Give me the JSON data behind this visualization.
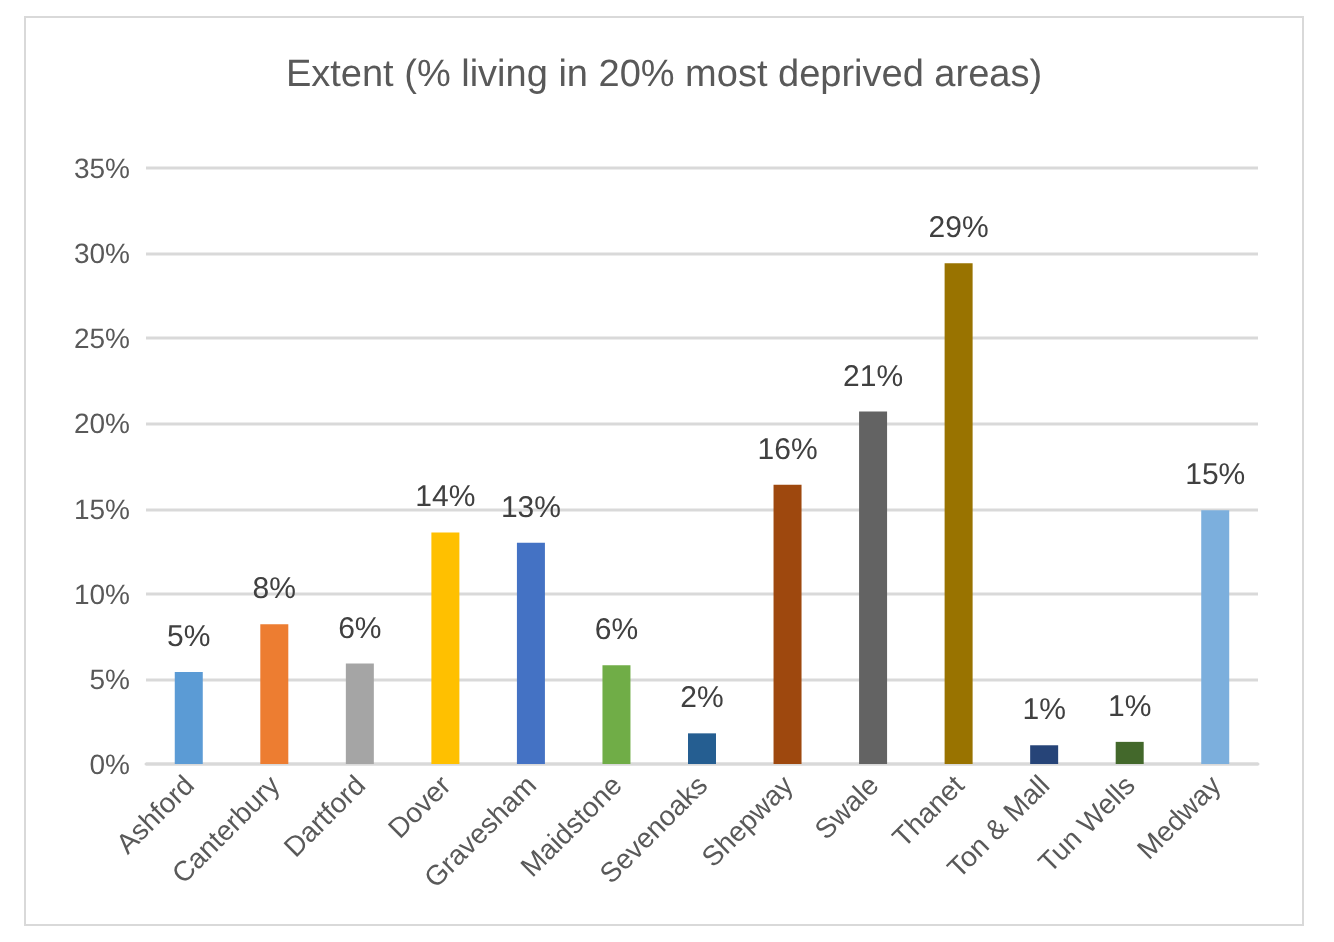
{
  "chart_data": {
    "type": "bar",
    "title": "Extent (% living in 20% most deprived areas)",
    "categories": [
      "Ashford",
      "Canterbury",
      "Dartford",
      "Dover",
      "Gravesham",
      "Maidstone",
      "Sevenoaks",
      "Shepway",
      "Swale",
      "Thanet",
      "Ton & Mall",
      "Tun Wells",
      "Medway"
    ],
    "values": [
      5.4,
      8.2,
      5.9,
      13.6,
      13.0,
      5.8,
      1.8,
      16.4,
      20.7,
      29.4,
      1.1,
      1.3,
      14.9
    ],
    "value_labels": [
      "5%",
      "8%",
      "6%",
      "14%",
      "13%",
      "6%",
      "2%",
      "16%",
      "21%",
      "29%",
      "1%",
      "1%",
      "15%"
    ],
    "colors": [
      "#5b9bd5",
      "#ed7d31",
      "#a5a5a5",
      "#ffc000",
      "#4472c4",
      "#70ad47",
      "#255e91",
      "#9e480e",
      "#636363",
      "#997300",
      "#264478",
      "#43682b",
      "#7cafdd"
    ],
    "ylim": [
      0,
      35
    ],
    "yticks": [
      {
        "value": 0,
        "label": "0%"
      },
      {
        "value": 5,
        "label": "5%"
      },
      {
        "value": 10,
        "label": "10%"
      },
      {
        "value": 15,
        "label": "15%"
      },
      {
        "value": 20,
        "label": "20%"
      },
      {
        "value": 25,
        "label": "25%"
      },
      {
        "value": 30,
        "label": "30%"
      },
      {
        "value": 35,
        "label": "35%"
      }
    ],
    "grid": "y"
  }
}
